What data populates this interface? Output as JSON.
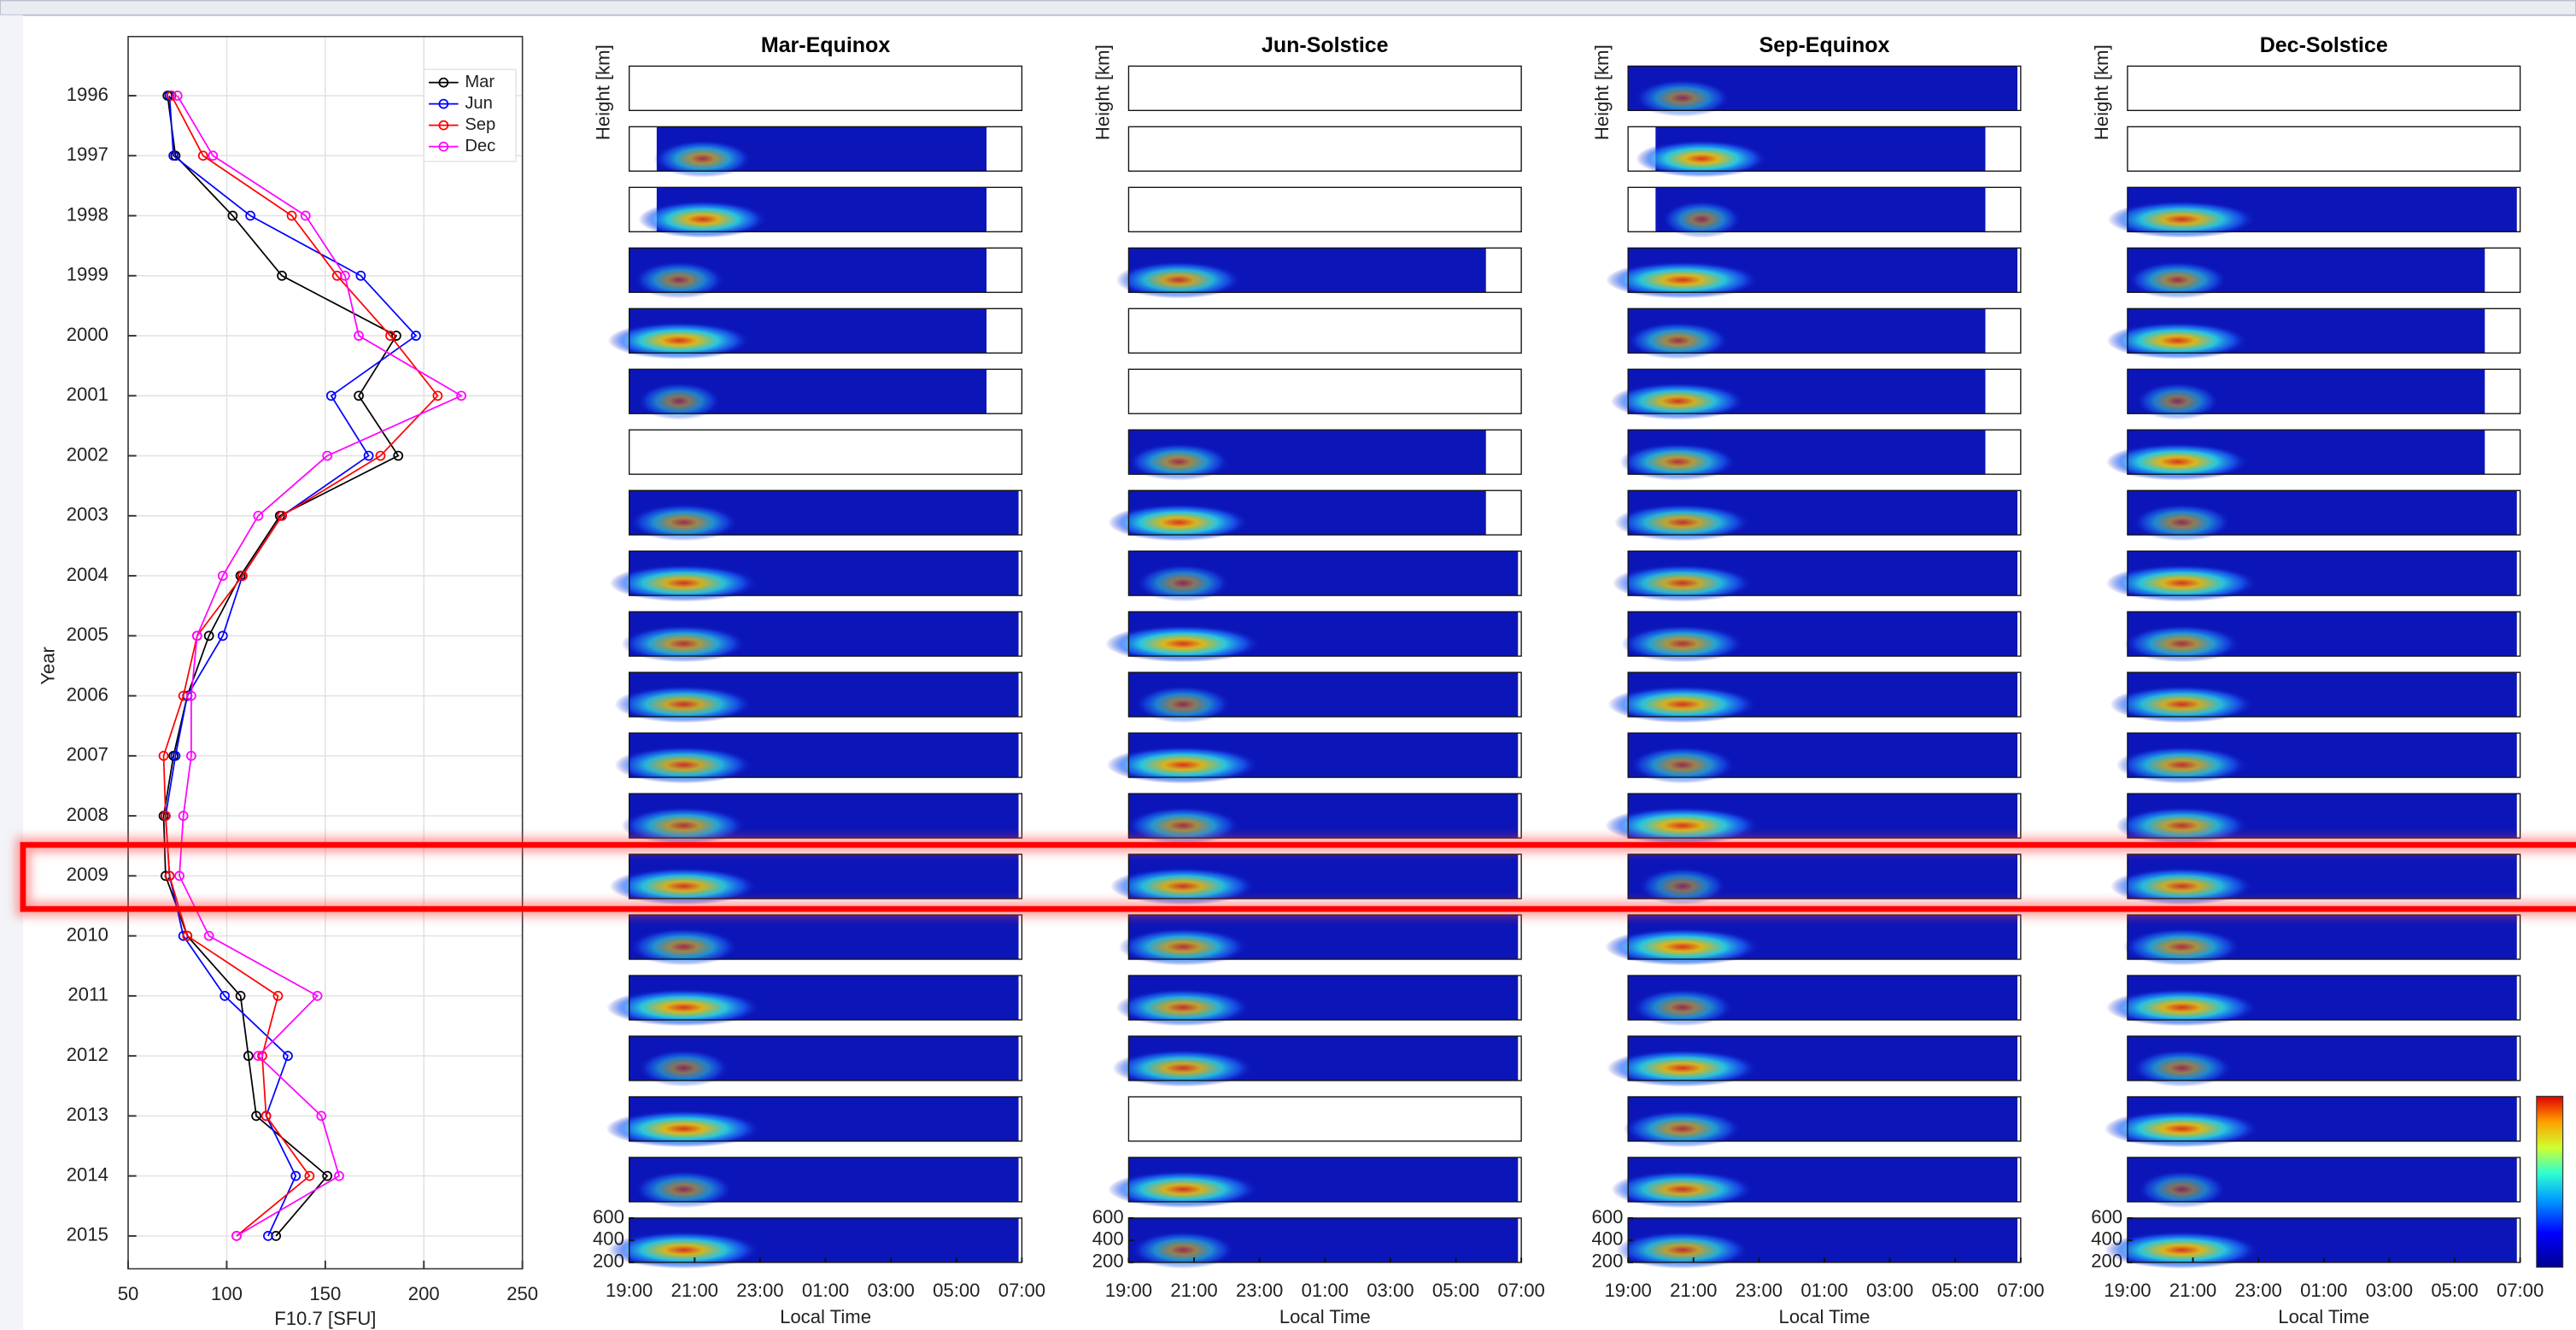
{
  "chart_data": [
    {
      "type": "line",
      "orientation": "horizontal",
      "categories": [
        "1996",
        "1997",
        "1998",
        "1999",
        "2000",
        "2001",
        "2002",
        "2003",
        "2004",
        "2005",
        "2006",
        "2007",
        "2008",
        "2009",
        "2010",
        "2011",
        "2012",
        "2013",
        "2014",
        "2015"
      ],
      "series": [
        {
          "name": "Mar",
          "color": "#000000",
          "values": [
            70,
            74,
            103,
            128,
            186,
            167,
            187,
            127,
            107,
            91,
            80,
            73,
            68,
            69,
            80,
            107,
            111,
            115,
            151,
            125
          ]
        },
        {
          "name": "Jun",
          "color": "#0000ff",
          "values": [
            71,
            73,
            112,
            168,
            196,
            153,
            172,
            128,
            108,
            98,
            80,
            74,
            69,
            71,
            78,
            99,
            131,
            120,
            135,
            121
          ]
        },
        {
          "name": "Sep",
          "color": "#ff0000",
          "values": [
            72,
            88,
            133,
            156,
            183,
            207,
            178,
            128,
            108,
            85,
            78,
            68,
            69,
            71,
            80,
            126,
            118,
            120,
            142,
            105
          ]
        },
        {
          "name": "Dec",
          "color": "#ff00ff",
          "values": [
            75,
            93,
            140,
            160,
            167,
            219,
            151,
            116,
            98,
            85,
            82,
            82,
            78,
            76,
            91,
            146,
            116,
            148,
            157,
            105
          ]
        }
      ],
      "xlim": [
        50,
        250
      ],
      "xticks": [
        50,
        100,
        150,
        200,
        250
      ],
      "xlabel": "F10.7 [SFU]",
      "ylabel": "Year",
      "grid": true,
      "legend": "upper right"
    },
    {
      "type": "heatmap",
      "title": "Mar-Equinox",
      "xlabel": "Local Time",
      "ylabel": "Height [km]",
      "xlim": [
        19,
        31
      ],
      "xticks": [
        {
          "value": 19,
          "label": "19:00"
        },
        {
          "value": 21,
          "label": "21:00"
        },
        {
          "value": 23,
          "label": "23:00"
        },
        {
          "value": 25,
          "label": "01:00"
        },
        {
          "value": 27,
          "label": "03:00"
        },
        {
          "value": 29,
          "label": "05:00"
        },
        {
          "value": 31,
          "label": "07:00"
        }
      ],
      "ylim": [
        200,
        600
      ],
      "yticks": [
        200,
        400,
        600
      ]
    },
    {
      "type": "heatmap",
      "title": "Jun-Solstice",
      "xlabel": "Local Time",
      "ylabel": "Height [km]",
      "xlim": [
        19,
        31
      ],
      "xticks": [
        {
          "value": 19,
          "label": "19:00"
        },
        {
          "value": 21,
          "label": "21:00"
        },
        {
          "value": 23,
          "label": "23:00"
        },
        {
          "value": 25,
          "label": "01:00"
        },
        {
          "value": 27,
          "label": "03:00"
        },
        {
          "value": 29,
          "label": "05:00"
        },
        {
          "value": 31,
          "label": "07:00"
        }
      ],
      "ylim": [
        200,
        600
      ],
      "yticks": [
        200,
        400,
        600
      ]
    },
    {
      "type": "heatmap",
      "title": "Sep-Equinox",
      "xlabel": "Local Time",
      "ylabel": "Height [km]",
      "xlim": [
        19,
        31
      ],
      "xticks": [
        {
          "value": 19,
          "label": "19:00"
        },
        {
          "value": 21,
          "label": "21:00"
        },
        {
          "value": 23,
          "label": "23:00"
        },
        {
          "value": 25,
          "label": "01:00"
        },
        {
          "value": 27,
          "label": "03:00"
        },
        {
          "value": 29,
          "label": "05:00"
        },
        {
          "value": 31,
          "label": "07:00"
        }
      ],
      "ylim": [
        200,
        600
      ],
      "yticks": [
        200,
        400,
        600
      ]
    },
    {
      "type": "heatmap",
      "title": "Dec-Solstice",
      "xlabel": "Local Time",
      "ylabel": "Height [km]",
      "xlim": [
        19,
        31
      ],
      "xticks": [
        {
          "value": 19,
          "label": "19:00"
        },
        {
          "value": 21,
          "label": "21:00"
        },
        {
          "value": 23,
          "label": "23:00"
        },
        {
          "value": 25,
          "label": "01:00"
        },
        {
          "value": 27,
          "label": "03:00"
        },
        {
          "value": 29,
          "label": "05:00"
        },
        {
          "value": 31,
          "label": "07:00"
        }
      ],
      "ylim": [
        200,
        600
      ],
      "yticks": [
        200,
        400,
        600
      ]
    }
  ]
}
